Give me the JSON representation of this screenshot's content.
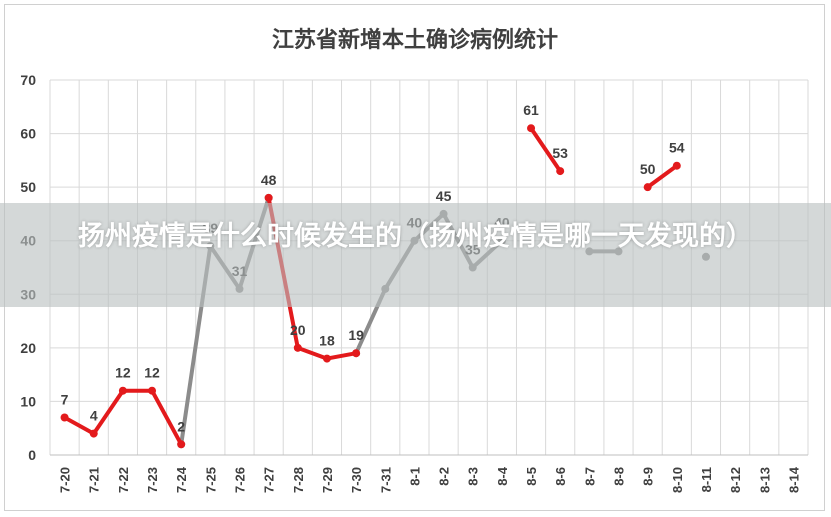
{
  "article_title": "扬州疫情是什么时候发生的（扬州疫情是哪一天发现的）",
  "chart_data": {
    "type": "line",
    "title": "江苏省新增本土确诊病例统计",
    "xlabel": "",
    "ylabel": "",
    "ylim": [
      0,
      70
    ],
    "yticks": [
      0,
      10,
      20,
      30,
      40,
      50,
      60,
      70
    ],
    "grid": true,
    "legend": "none",
    "categories": [
      "7-20",
      "7-21",
      "7-22",
      "7-23",
      "7-24",
      "7-25",
      "7-26",
      "7-27",
      "7-28",
      "7-29",
      "7-30",
      "7-31",
      "8-1",
      "8-2",
      "8-3",
      "8-4",
      "8-5",
      "8-6",
      "8-7",
      "8-8",
      "8-9",
      "8-10",
      "8-11",
      "8-12",
      "8-13",
      "8-14"
    ],
    "series": [
      {
        "color": "#8c8c8c",
        "values": [
          null,
          null,
          null,
          null,
          2,
          39,
          31,
          48,
          null,
          null,
          19,
          31,
          40,
          45,
          35,
          40,
          null,
          null,
          38,
          38,
          null,
          null,
          37,
          null,
          null,
          null
        ],
        "labels": [
          null,
          null,
          null,
          null,
          null,
          "39",
          "31",
          null,
          null,
          null,
          null,
          null,
          "40",
          "45",
          "35",
          "40",
          null,
          null,
          null,
          null,
          null,
          null,
          null,
          null,
          null,
          null
        ]
      },
      {
        "color": "#e31a1c",
        "values": [
          7,
          4,
          12,
          12,
          2,
          null,
          null,
          48,
          20,
          18,
          19,
          null,
          null,
          null,
          null,
          null,
          61,
          53,
          null,
          null,
          50,
          54,
          null,
          null,
          null,
          null
        ],
        "labels": [
          "7",
          "4",
          "12",
          "12",
          "2",
          null,
          null,
          "48",
          "20",
          "18",
          "19",
          null,
          null,
          null,
          null,
          null,
          "61",
          "53",
          null,
          null,
          "50",
          "54",
          null,
          null,
          null,
          null
        ]
      }
    ]
  }
}
